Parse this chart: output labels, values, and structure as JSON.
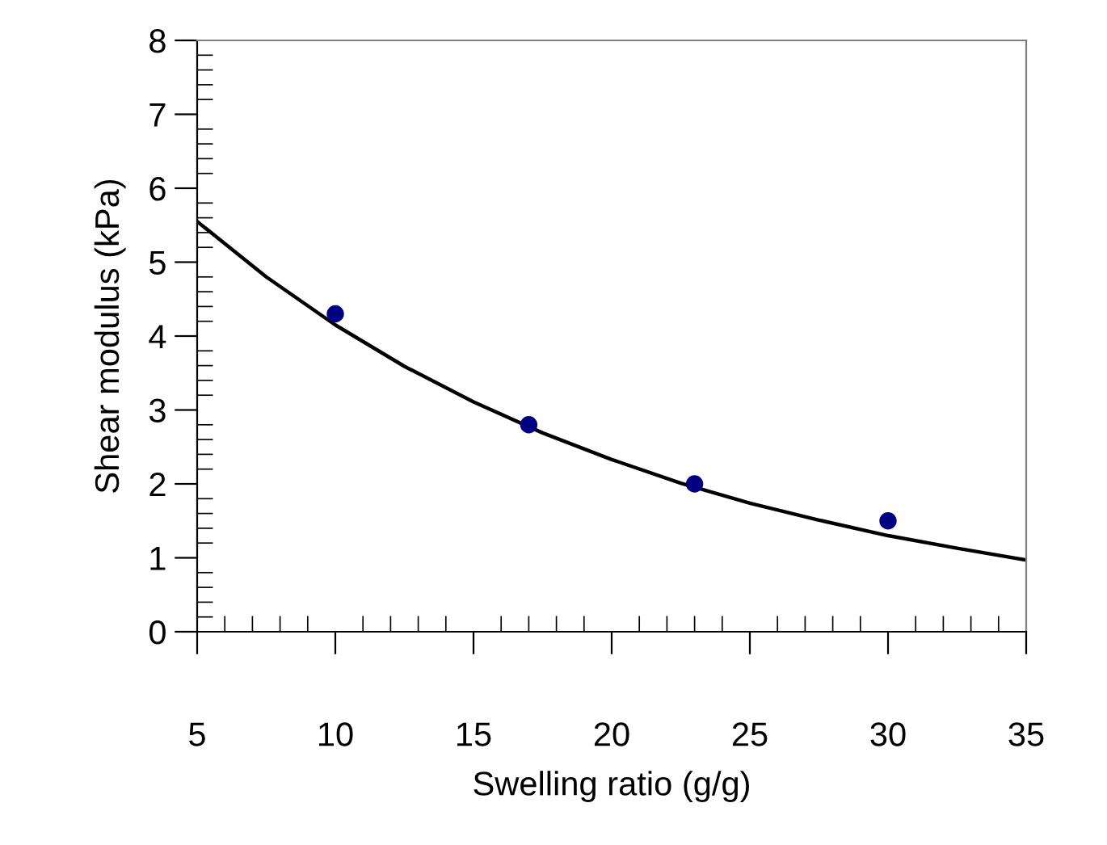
{
  "chart_data": {
    "type": "scatter",
    "xlabel": "Swelling ratio (g/g)",
    "ylabel": "Shear modulus (kPa)",
    "xlim": [
      5,
      35
    ],
    "ylim": [
      0,
      8
    ],
    "xticks": [
      5,
      10,
      15,
      20,
      25,
      30,
      35
    ],
    "yticks": [
      0,
      1,
      2,
      3,
      4,
      5,
      6,
      7,
      8
    ],
    "grid": false,
    "legend": false,
    "series": [
      {
        "color": "#000080",
        "marker": "circle",
        "x": [
          10,
          17,
          23,
          30
        ],
        "values": [
          4.3,
          2.8,
          2.0,
          1.5
        ]
      },
      {
        "type": "line",
        "color": "#000000",
        "marker": "none",
        "line_style": "solid",
        "x": [
          5,
          7.5,
          10,
          12.5,
          15,
          17.5,
          20,
          22.5,
          25,
          27.5,
          30,
          32.5,
          35
        ],
        "values": [
          5.55,
          4.8,
          4.15,
          3.59,
          3.11,
          2.69,
          2.33,
          2.01,
          1.74,
          1.51,
          1.3,
          1.13,
          0.97
        ]
      }
    ]
  }
}
